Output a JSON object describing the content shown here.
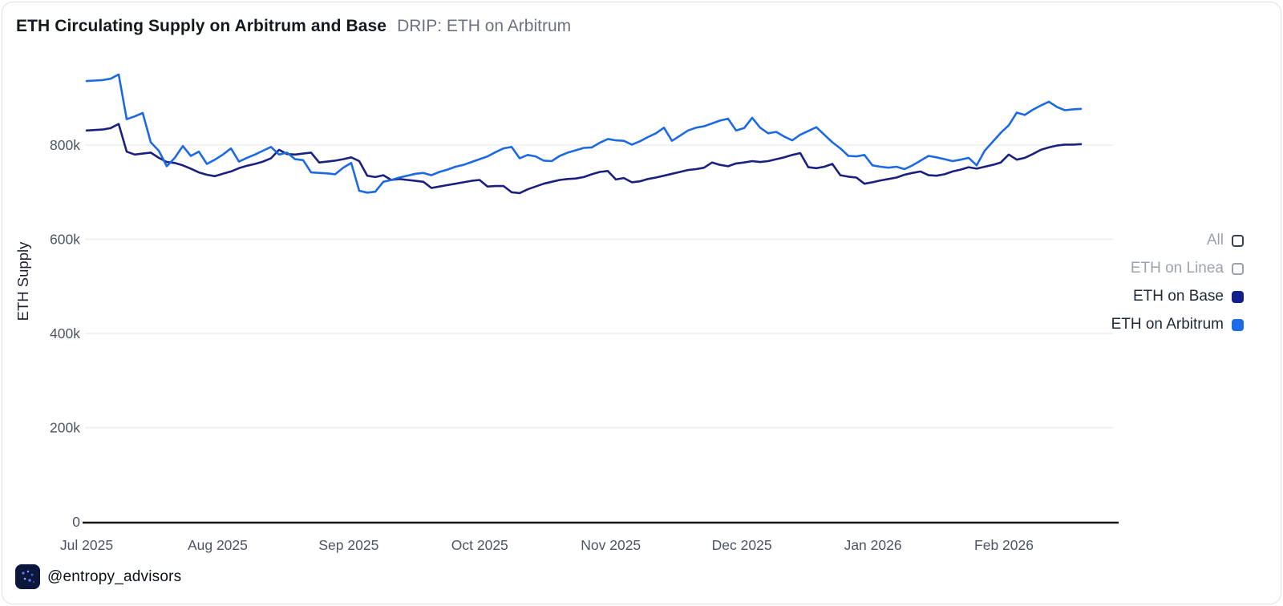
{
  "header": {
    "title": "ETH Circulating Supply on Arbitrum and Base",
    "subtitle": "DRIP: ETH on Arbitrum"
  },
  "footer": {
    "handle": "@entropy_advisors",
    "logo": "entropy-advisors-logo"
  },
  "legend": {
    "position": "right",
    "items": [
      {
        "label": "All",
        "state": "off",
        "text_color": "#9ca3af",
        "marker_fill": "#ffffff",
        "marker_border": "#374151"
      },
      {
        "label": "ETH on Linea",
        "state": "off",
        "text_color": "#9ca3af",
        "marker_fill": "#ffffff",
        "marker_border": "#9aa1ab"
      },
      {
        "label": "ETH on Base",
        "state": "on",
        "text_color": "#1f2937",
        "marker_fill": "#131f8c",
        "marker_border": "#131f8c"
      },
      {
        "label": "ETH on Arbitrum",
        "state": "on",
        "text_color": "#1f2937",
        "marker_fill": "#1b6ce8",
        "marker_border": "#1b6ce8"
      }
    ]
  },
  "chart_data": {
    "type": "line",
    "title": "ETH Circulating Supply on Arbitrum and Base",
    "subtitle": "DRIP: ETH on Arbitrum",
    "xlabel": "",
    "ylabel": "ETH Supply",
    "unit": "ETH",
    "grid": "horizontal",
    "legend_position": "right",
    "x_range": [
      "2025-07-01",
      "2026-02-18"
    ],
    "x_tick_labels": [
      "Jul 2025",
      "Aug 2025",
      "Sep 2025",
      "Oct 2025",
      "Nov 2025",
      "Dec 2025",
      "Jan 2026",
      "Feb 2026"
    ],
    "y_tick_labels": [
      "0",
      "200k",
      "400k",
      "600k",
      "800k"
    ],
    "y_ticks_k": [
      0,
      200,
      400,
      600,
      800
    ],
    "ylim_k": [
      0,
      960
    ],
    "axis_color": "#141414",
    "grid_color": "#ebedf0",
    "tick_text_color": "#4b5563",
    "series": [
      {
        "name": "ETH on Base",
        "color": "#1a2080",
        "values_unit": "thousand ETH",
        "values_k": [
          831,
          832,
          833,
          836,
          845,
          786,
          780,
          782,
          784,
          773,
          764,
          762,
          757,
          750,
          742,
          737,
          734,
          739,
          744,
          751,
          756,
          760,
          765,
          772,
          790,
          781,
          780,
          782,
          784,
          763,
          765,
          767,
          770,
          774,
          766,
          735,
          732,
          736,
          726,
          728,
          726,
          724,
          722,
          709,
          712,
          715,
          718,
          721,
          724,
          726,
          712,
          713,
          713,
          700,
          698,
          706,
          712,
          718,
          722,
          726,
          728,
          729,
          732,
          738,
          743,
          745,
          727,
          730,
          721,
          723,
          728,
          731,
          735,
          739,
          743,
          747,
          749,
          752,
          763,
          758,
          755,
          761,
          763,
          766,
          764,
          766,
          770,
          774,
          779,
          783,
          753,
          751,
          754,
          760,
          736,
          733,
          731,
          718,
          721,
          725,
          728,
          731,
          737,
          741,
          744,
          736,
          735,
          738,
          744,
          748,
          753,
          750,
          754,
          758,
          763,
          780,
          769,
          773,
          781,
          790,
          795,
          799,
          801,
          801,
          802
        ]
      },
      {
        "name": "ETH on Arbitrum",
        "color": "#1c69e4",
        "values_unit": "thousand ETH",
        "values_k": [
          936,
          937,
          938,
          941,
          950,
          855,
          861,
          868,
          806,
          788,
          755,
          773,
          798,
          777,
          786,
          760,
          769,
          780,
          793,
          765,
          773,
          780,
          788,
          796,
          780,
          784,
          770,
          768,
          742,
          741,
          740,
          738,
          752,
          762,
          703,
          699,
          701,
          722,
          726,
          731,
          735,
          739,
          741,
          736,
          743,
          748,
          754,
          758,
          764,
          770,
          776,
          785,
          793,
          796,
          772,
          779,
          776,
          767,
          766,
          777,
          784,
          789,
          794,
          795,
          805,
          813,
          810,
          809,
          801,
          808,
          817,
          825,
          837,
          809,
          820,
          831,
          837,
          840,
          846,
          852,
          856,
          831,
          836,
          858,
          837,
          825,
          828,
          818,
          810,
          822,
          830,
          838,
          822,
          806,
          793,
          777,
          776,
          779,
          757,
          754,
          752,
          754,
          749,
          757,
          767,
          777,
          774,
          770,
          766,
          769,
          773,
          757,
          788,
          807,
          826,
          842,
          869,
          864,
          875,
          884,
          892,
          881,
          874,
          876,
          877
        ]
      }
    ]
  }
}
